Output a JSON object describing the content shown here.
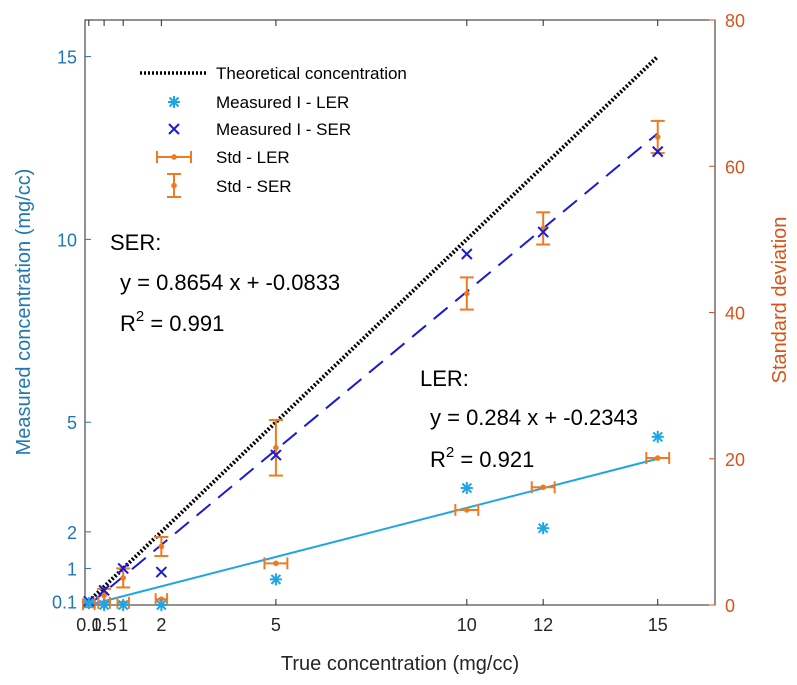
{
  "chart_data": {
    "type": "scatter",
    "xlabel": "True concentration (mg/cc)",
    "ylabel_left": "Measured concentration (mg/cc)",
    "ylabel_right": "Standard deviation",
    "xlim": [
      0,
      16.5
    ],
    "ylim_left": [
      0,
      16
    ],
    "ylim_right": [
      0,
      80
    ],
    "x_ticks": [
      "0.1",
      "0.5",
      "1",
      "2",
      "5",
      "10",
      "12",
      "15"
    ],
    "x_tick_values": [
      0.1,
      0.5,
      1,
      2,
      5,
      10,
      12,
      15
    ],
    "y_left_ticks": [
      "0.1",
      "1",
      "2",
      "5",
      "10",
      "15"
    ],
    "y_left_tick_values": [
      0.1,
      1,
      2,
      5,
      10,
      15
    ],
    "y_right_ticks": [
      "0",
      "20",
      "40",
      "60",
      "80"
    ],
    "y_right_tick_values": [
      0,
      20,
      40,
      60,
      80
    ],
    "grid": false,
    "legend_position": "top-left",
    "colors": {
      "left_axis": "#1f77b4",
      "right_axis": "#d95319",
      "ler": "#1ea5e6",
      "ser": "#1a1ad6",
      "std": "#f07a1f",
      "theory": "#000000"
    },
    "legend": [
      {
        "label": "Theoretical concentration",
        "marker": "dotted-line",
        "color": "#000000"
      },
      {
        "label": "Measured I - LER",
        "marker": "asterisk",
        "color": "#1ea5e6"
      },
      {
        "label": "Measured I - SER",
        "marker": "x",
        "color": "#1a1ad6"
      },
      {
        "label": "Std - LER",
        "marker": "h-errorbar",
        "color": "#f07a1f"
      },
      {
        "label": "Std - SER",
        "marker": "v-errorbar",
        "color": "#f07a1f"
      }
    ],
    "series": [
      {
        "name": "Theoretical concentration",
        "axis": "left",
        "x": [
          0.1,
          15
        ],
        "y": [
          0.1,
          15
        ]
      },
      {
        "name": "Measured I - LER",
        "axis": "left",
        "x": [
          0.1,
          0.5,
          1,
          2,
          5,
          10,
          12,
          15
        ],
        "y": [
          0.05,
          0.0,
          0.0,
          0.0,
          0.7,
          3.2,
          2.1,
          4.6
        ]
      },
      {
        "name": "Measured I - SER",
        "axis": "left",
        "x": [
          0.1,
          0.5,
          1,
          2,
          5,
          10,
          12,
          15
        ],
        "y": [
          0.1,
          0.4,
          1.0,
          0.9,
          4.1,
          9.6,
          10.2,
          12.4
        ]
      },
      {
        "name": "LER fit",
        "axis": "left",
        "x": [
          0.1,
          15
        ],
        "y": [
          0.0,
          4.0
        ]
      },
      {
        "name": "SER fit",
        "axis": "left",
        "x": [
          0.1,
          15
        ],
        "y": [
          0.0,
          12.9
        ]
      },
      {
        "name": "Std - LER",
        "axis": "right",
        "x": [
          0.1,
          0.5,
          1,
          2,
          5,
          10,
          12,
          15
        ],
        "y": [
          0.1,
          0.3,
          0.3,
          0.8,
          5.7,
          13.0,
          16.1,
          20.1
        ],
        "xerr": [
          0.15,
          0.15,
          0.15,
          0.15,
          0.3,
          0.3,
          0.3,
          0.3
        ]
      },
      {
        "name": "Std - SER",
        "axis": "right",
        "x": [
          0.1,
          0.5,
          1,
          2,
          5,
          10,
          12,
          15
        ],
        "y": [
          0.1,
          1.3,
          3.7,
          8.0,
          21.5,
          42.6,
          51.5,
          64.0
        ],
        "yerr": [
          0.4,
          0.9,
          1.3,
          1.3,
          3.8,
          2.2,
          2.2,
          2.2
        ]
      }
    ],
    "annotations": {
      "ser_title": "SER:",
      "ser_eq": "y = 0.8654 x + -0.0833",
      "ser_r2_prefix": "R",
      "ser_r2_sup": "2",
      "ser_r2_value": " = 0.991",
      "ler_title": "LER:",
      "ler_eq": "y = 0.284 x + -0.2343",
      "ler_r2_prefix": "R",
      "ler_r2_sup": "2",
      "ler_r2_value": " = 0.921"
    }
  }
}
